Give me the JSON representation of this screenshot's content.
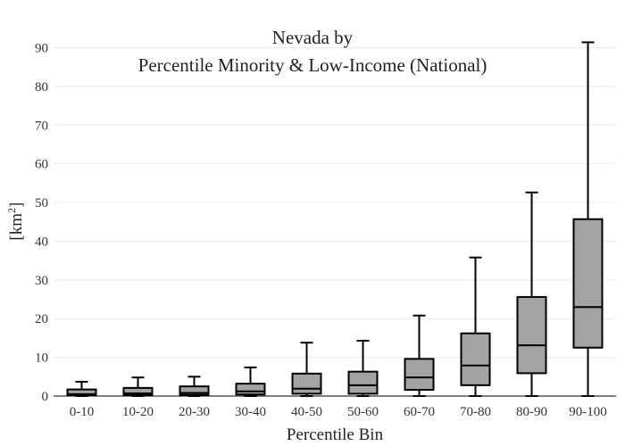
{
  "chart_data": {
    "type": "box",
    "title": [
      "Nevada  by",
      "Percentile Minority & Low-Income (National)"
    ],
    "xlabel": "Percentile Bin",
    "ylabel_base": "[km",
    "ylabel_sup": "2",
    "ylabel_end": "]",
    "ylim": [
      0,
      95
    ],
    "yticks": [
      0,
      10,
      20,
      30,
      40,
      50,
      60,
      70,
      80,
      90
    ],
    "grid": true,
    "box_color": "#a3a3a3",
    "categories": [
      "0-10",
      "10-20",
      "20-30",
      "30-40",
      "40-50",
      "50-60",
      "60-70",
      "70-80",
      "80-90",
      "90-100"
    ],
    "boxes": [
      {
        "min": 0,
        "q1": 0.2,
        "median": 0.5,
        "q3": 1.7,
        "max": 3.7
      },
      {
        "min": 0,
        "q1": 0.3,
        "median": 0.7,
        "q3": 2.1,
        "max": 4.8
      },
      {
        "min": 0,
        "q1": 0.3,
        "median": 0.8,
        "q3": 2.5,
        "max": 5.0
      },
      {
        "min": 0,
        "q1": 0.4,
        "median": 1.2,
        "q3": 3.2,
        "max": 7.4
      },
      {
        "min": 0,
        "q1": 0.6,
        "median": 1.9,
        "q3": 5.8,
        "max": 13.8
      },
      {
        "min": 0,
        "q1": 0.6,
        "median": 2.8,
        "q3": 6.3,
        "max": 14.3
      },
      {
        "min": 0,
        "q1": 1.6,
        "median": 4.8,
        "q3": 9.6,
        "max": 20.8
      },
      {
        "min": 0,
        "q1": 2.8,
        "median": 7.9,
        "q3": 16.2,
        "max": 35.8
      },
      {
        "min": 0,
        "q1": 5.9,
        "median": 13.1,
        "q3": 25.6,
        "max": 52.6
      },
      {
        "min": 0,
        "q1": 12.5,
        "median": 23.0,
        "q3": 45.7,
        "max": 91.4
      }
    ]
  }
}
